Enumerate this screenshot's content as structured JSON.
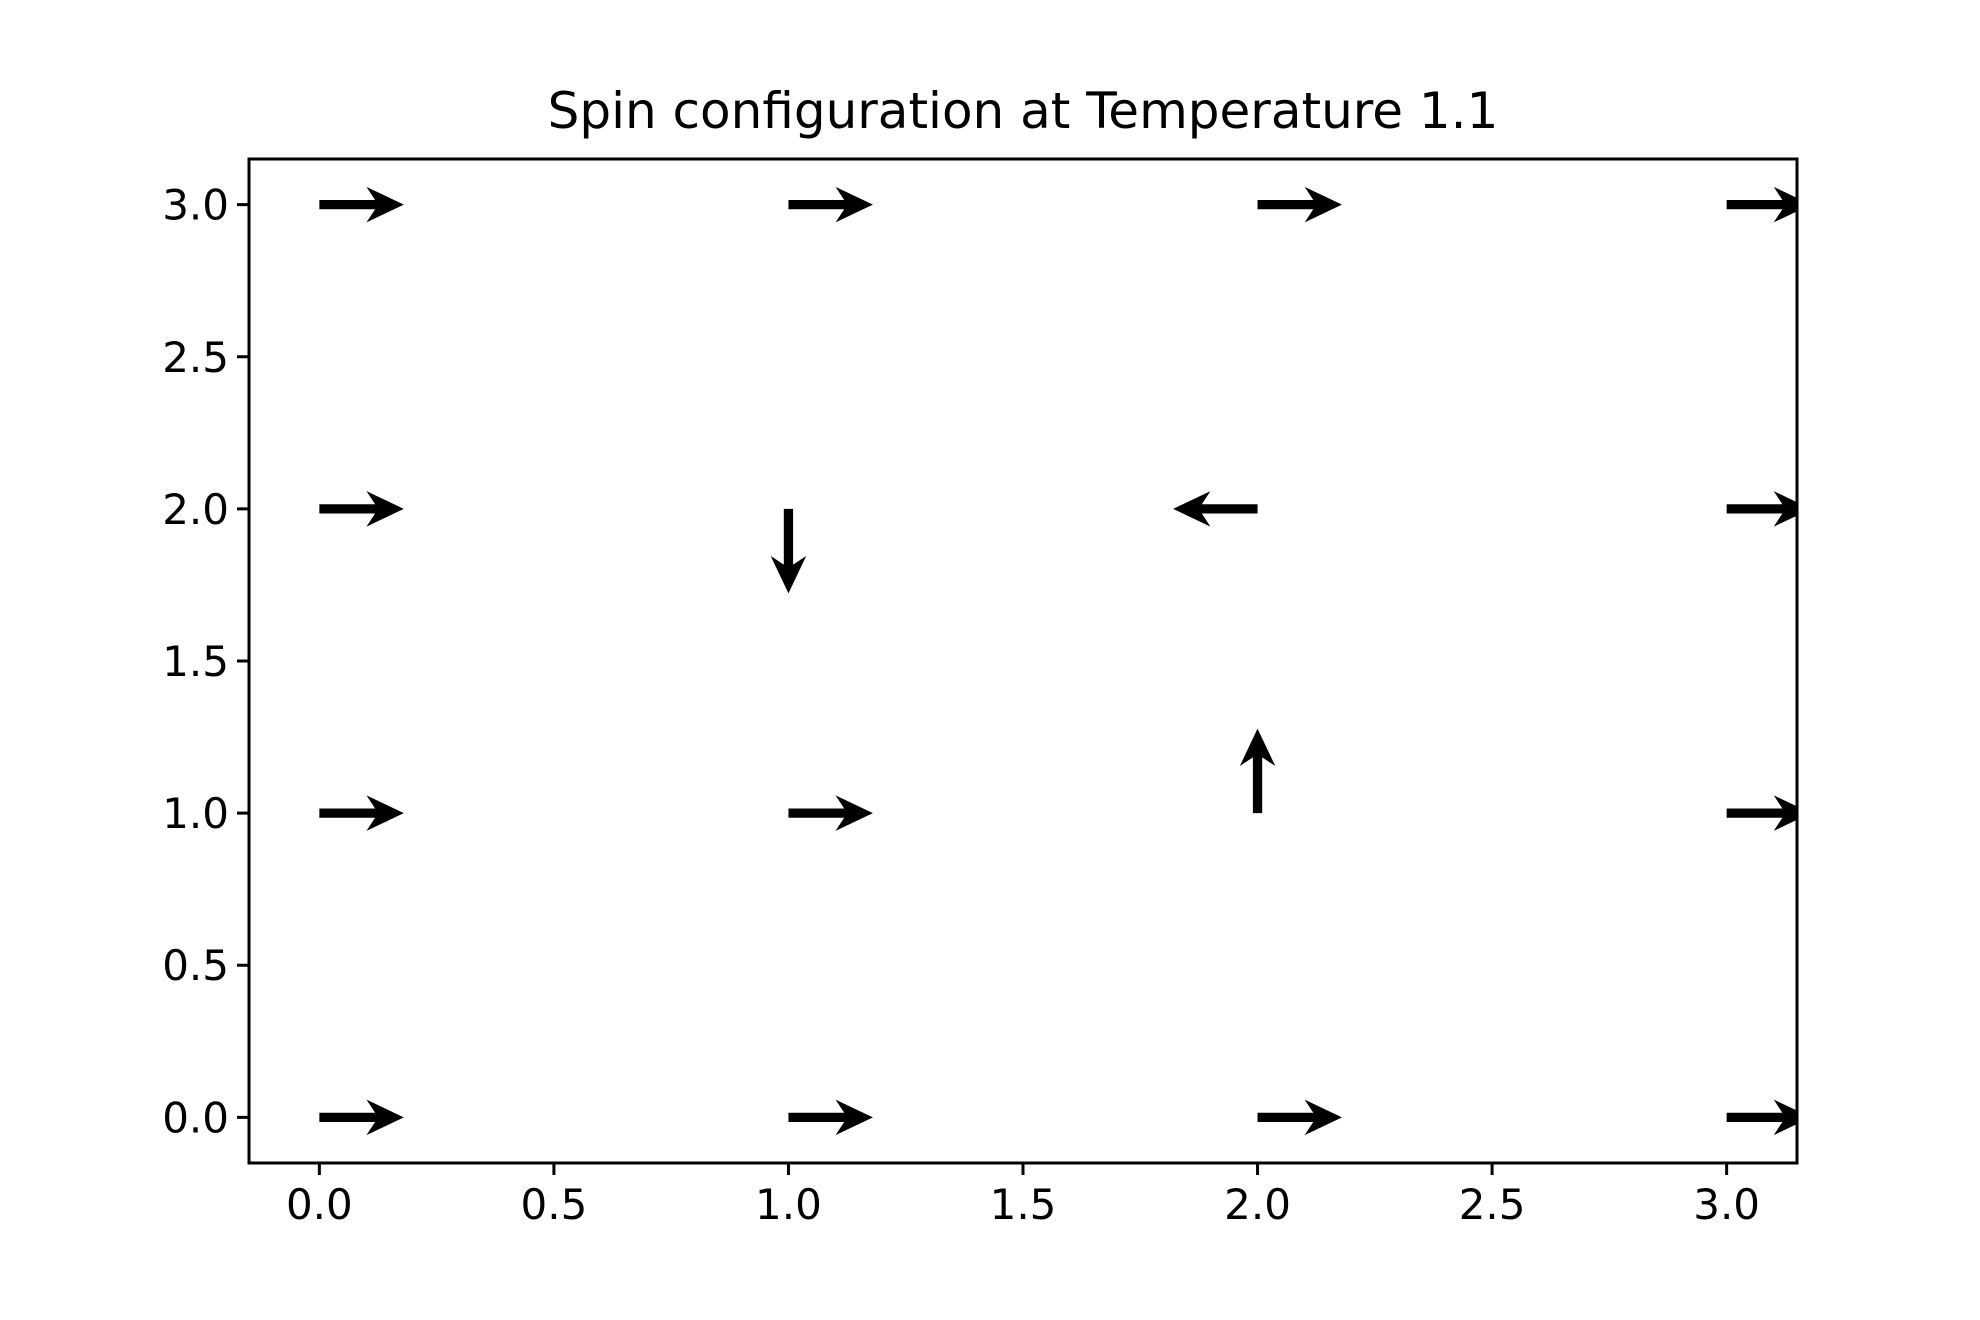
{
  "chart_data": {
    "type": "quiver",
    "title": "Spin configuration at Temperature 1.1",
    "xlabel": "",
    "ylabel": "",
    "xlim": [
      -0.15,
      3.15
    ],
    "ylim": [
      -0.15,
      3.15
    ],
    "xticks": [
      "0.0",
      "0.5",
      "1.0",
      "1.5",
      "2.0",
      "2.5",
      "3.0"
    ],
    "yticks": [
      "0.0",
      "0.5",
      "1.0",
      "1.5",
      "2.0",
      "2.5",
      "3.0"
    ],
    "grid": false,
    "arrow_length": 0.18,
    "vectors": [
      {
        "x": 0,
        "y": 0,
        "u": 1,
        "v": 0
      },
      {
        "x": 1,
        "y": 0,
        "u": 1,
        "v": 0
      },
      {
        "x": 2,
        "y": 0,
        "u": 1,
        "v": 0
      },
      {
        "x": 3,
        "y": 0,
        "u": 1,
        "v": 0
      },
      {
        "x": 0,
        "y": 1,
        "u": 1,
        "v": 0
      },
      {
        "x": 1,
        "y": 1,
        "u": 1,
        "v": 0
      },
      {
        "x": 2,
        "y": 1,
        "u": 0,
        "v": 1
      },
      {
        "x": 3,
        "y": 1,
        "u": 1,
        "v": 0
      },
      {
        "x": 0,
        "y": 2,
        "u": 1,
        "v": 0
      },
      {
        "x": 1,
        "y": 2,
        "u": 0,
        "v": -1
      },
      {
        "x": 2,
        "y": 2,
        "u": -1,
        "v": 0
      },
      {
        "x": 3,
        "y": 2,
        "u": 1,
        "v": 0
      },
      {
        "x": 0,
        "y": 3,
        "u": 1,
        "v": 0
      },
      {
        "x": 1,
        "y": 3,
        "u": 1,
        "v": 0
      },
      {
        "x": 2,
        "y": 3,
        "u": 1,
        "v": 0
      },
      {
        "x": 3,
        "y": 3,
        "u": 1,
        "v": 0
      }
    ]
  }
}
